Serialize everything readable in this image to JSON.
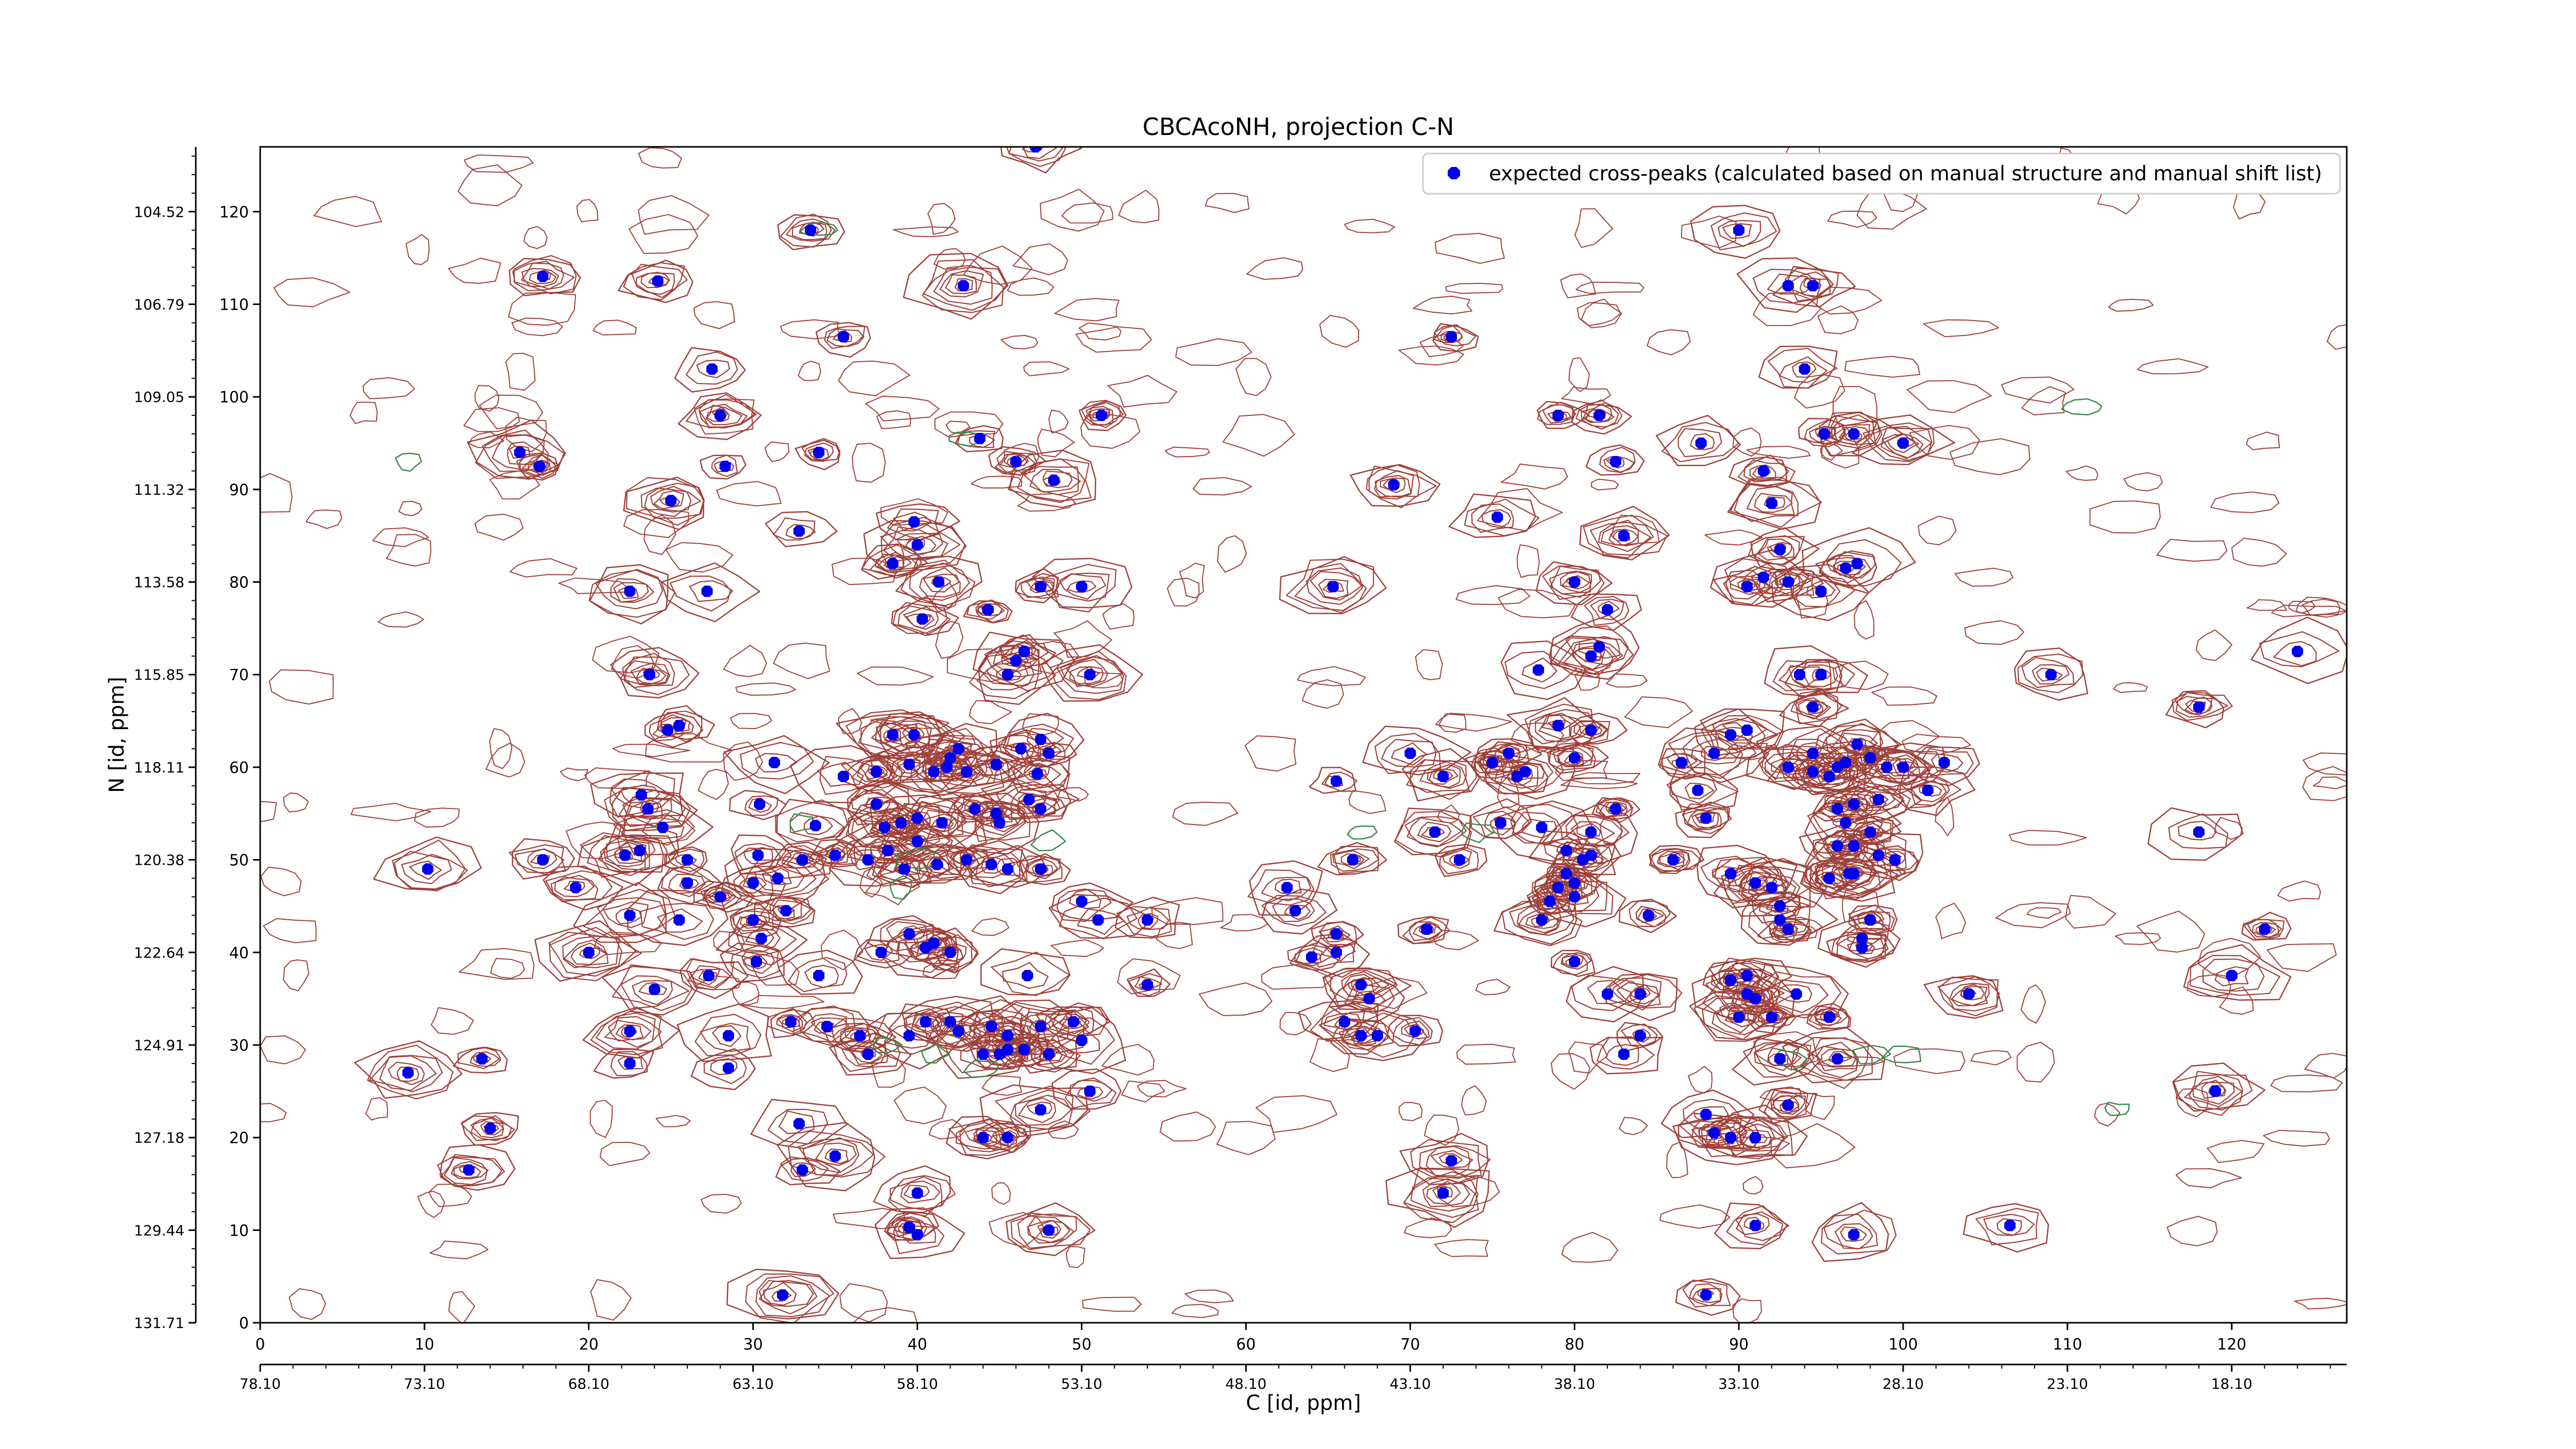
{
  "chart_data": {
    "type": "scatter",
    "title": "CBCAcoNH, projection C-N",
    "xlabel": "C [id, ppm]",
    "ylabel": "N [id, ppm]",
    "xlim": [
      0,
      127
    ],
    "ylim": [
      0,
      127
    ],
    "x_ticks": [
      0,
      10,
      20,
      30,
      40,
      50,
      60,
      70,
      80,
      90,
      100,
      110,
      120
    ],
    "y_ticks": [
      0,
      10,
      20,
      30,
      40,
      50,
      60,
      70,
      80,
      90,
      100,
      110,
      120
    ],
    "x_secondary_ticks": [
      "78.10",
      "73.10",
      "68.10",
      "63.10",
      "58.10",
      "53.10",
      "48.10",
      "43.10",
      "38.10",
      "33.10",
      "28.10",
      "23.10",
      "18.10"
    ],
    "y_secondary_ticks": [
      "131.71",
      "129.44",
      "127.18",
      "124.91",
      "122.64",
      "120.38",
      "118.11",
      "115.85",
      "113.58",
      "111.32",
      "109.05",
      "106.79",
      "104.52"
    ],
    "legend": {
      "position": "top-right",
      "entries": [
        "expected cross-peaks (calculated based on manual structure and manual shift list)"
      ]
    },
    "colors": {
      "positive_contour": "#a0403a",
      "negative_contour": "#3a8a4e",
      "marker": "#0000ee"
    },
    "grid": false,
    "series": [
      {
        "name": "expected cross-peaks (calculated based on manual structure and manual shift list)",
        "points": [
          [
            33.5,
            118
          ],
          [
            17.2,
            113
          ],
          [
            24.2,
            112.5
          ],
          [
            42.8,
            112
          ],
          [
            35.5,
            106.5
          ],
          [
            72.5,
            106.5
          ],
          [
            27.5,
            103
          ],
          [
            28,
            98
          ],
          [
            51.2,
            98
          ],
          [
            47.2,
            127
          ],
          [
            15.8,
            94
          ],
          [
            17,
            92.5
          ],
          [
            28.3,
            92.5
          ],
          [
            34,
            94
          ],
          [
            43.8,
            95.5
          ],
          [
            46,
            93
          ],
          [
            48.3,
            91
          ],
          [
            25,
            88.8
          ],
          [
            32.8,
            85.5
          ],
          [
            39.8,
            86.5
          ],
          [
            40,
            84
          ],
          [
            38.5,
            82
          ],
          [
            41.3,
            80
          ],
          [
            22.5,
            79
          ],
          [
            27.2,
            79
          ],
          [
            47.5,
            79.5
          ],
          [
            50,
            79.5
          ],
          [
            40.3,
            76
          ],
          [
            44.3,
            77
          ],
          [
            45.5,
            70
          ],
          [
            46,
            71.5
          ],
          [
            46.5,
            72.5
          ],
          [
            50.5,
            70
          ],
          [
            23.7,
            70
          ],
          [
            24.8,
            64
          ],
          [
            25.5,
            64.5
          ],
          [
            31.3,
            60.5
          ],
          [
            35.5,
            59
          ],
          [
            38.5,
            63.5
          ],
          [
            39.8,
            63.5
          ],
          [
            39.5,
            60.3
          ],
          [
            37.5,
            59.5
          ],
          [
            41,
            59.5
          ],
          [
            42,
            61
          ],
          [
            42.5,
            62
          ],
          [
            41.8,
            60
          ],
          [
            43,
            59.5
          ],
          [
            44.8,
            60.3
          ],
          [
            46.3,
            62
          ],
          [
            47.5,
            63
          ],
          [
            47.3,
            59.3
          ],
          [
            48,
            61.5
          ],
          [
            23.2,
            57
          ],
          [
            23.6,
            55.5
          ],
          [
            24.5,
            53.5
          ],
          [
            23.1,
            51
          ],
          [
            30.4,
            56
          ],
          [
            33.8,
            53.7
          ],
          [
            35,
            50.5
          ],
          [
            37.5,
            56
          ],
          [
            38,
            53.5
          ],
          [
            39,
            54
          ],
          [
            40,
            54.5
          ],
          [
            41.5,
            54
          ],
          [
            43.5,
            55.5
          ],
          [
            44.8,
            55
          ],
          [
            45,
            54
          ],
          [
            46.8,
            56.5
          ],
          [
            47.5,
            55.5
          ],
          [
            10.2,
            49
          ],
          [
            17.2,
            50
          ],
          [
            19.2,
            47
          ],
          [
            22.2,
            50.5
          ],
          [
            26,
            50
          ],
          [
            26,
            47.5
          ],
          [
            28,
            46
          ],
          [
            30,
            47.5
          ],
          [
            30.3,
            50.5
          ],
          [
            31.5,
            48
          ],
          [
            33,
            50
          ],
          [
            37,
            50
          ],
          [
            38.2,
            51
          ],
          [
            39.2,
            49
          ],
          [
            40,
            52
          ],
          [
            41.2,
            49.5
          ],
          [
            43,
            50
          ],
          [
            44.5,
            49.5
          ],
          [
            45.5,
            49
          ],
          [
            47.5,
            49
          ],
          [
            22.5,
            44
          ],
          [
            25.5,
            43.5
          ],
          [
            30,
            43.5
          ],
          [
            30.5,
            41.5
          ],
          [
            32,
            44.5
          ],
          [
            20,
            40
          ],
          [
            24,
            36
          ],
          [
            27.3,
            37.5
          ],
          [
            30.2,
            39
          ],
          [
            34,
            37.5
          ],
          [
            37.8,
            40
          ],
          [
            39.5,
            42
          ],
          [
            40.5,
            40.5
          ],
          [
            41,
            41
          ],
          [
            42,
            40
          ],
          [
            46.7,
            37.5
          ],
          [
            50,
            45.5
          ],
          [
            51,
            43.5
          ],
          [
            54,
            43.5
          ],
          [
            54,
            36.5
          ],
          [
            22.5,
            31.5
          ],
          [
            28.5,
            31
          ],
          [
            32.3,
            32.5
          ],
          [
            34.5,
            32
          ],
          [
            36.5,
            31
          ],
          [
            37,
            29
          ],
          [
            39.5,
            31
          ],
          [
            40.5,
            32.5
          ],
          [
            42,
            32.5
          ],
          [
            42.5,
            31.5
          ],
          [
            44.5,
            32
          ],
          [
            45,
            29
          ],
          [
            45.5,
            31
          ],
          [
            46.5,
            29.5
          ],
          [
            47.5,
            32
          ],
          [
            49.5,
            32.5
          ],
          [
            50,
            30.5
          ],
          [
            13.5,
            28.5
          ],
          [
            22.5,
            28
          ],
          [
            28.5,
            27.5
          ],
          [
            9,
            27
          ],
          [
            44,
            29
          ],
          [
            45.5,
            29.5
          ],
          [
            48,
            29
          ],
          [
            50.5,
            25
          ],
          [
            47.5,
            23
          ],
          [
            14,
            21
          ],
          [
            32.8,
            21.5
          ],
          [
            35,
            18
          ],
          [
            12.7,
            16.5
          ],
          [
            33,
            16.5
          ],
          [
            44,
            20
          ],
          [
            45.5,
            20
          ],
          [
            40,
            14
          ],
          [
            39.5,
            10.3
          ],
          [
            40,
            9.5
          ],
          [
            48,
            10
          ],
          [
            31.8,
            3
          ],
          [
            62.5,
            47
          ],
          [
            63,
            44.5
          ],
          [
            64,
            39.5
          ],
          [
            65.5,
            40
          ],
          [
            65.5,
            42
          ],
          [
            65.5,
            58.5
          ],
          [
            66,
            32.5
          ],
          [
            67,
            36.5
          ],
          [
            67.5,
            35
          ],
          [
            67,
            31
          ],
          [
            68,
            31
          ],
          [
            66.5,
            50
          ],
          [
            65.3,
            79.5
          ],
          [
            71,
            42.5
          ],
          [
            70.3,
            31.5
          ],
          [
            69,
            90.5
          ],
          [
            72.5,
            17.5
          ],
          [
            72,
            14
          ],
          [
            75.3,
            87
          ],
          [
            79,
            98
          ],
          [
            81.5,
            98
          ],
          [
            82.5,
            93
          ],
          [
            82,
            77
          ],
          [
            81,
            72
          ],
          [
            80,
            80
          ],
          [
            83,
            85
          ],
          [
            81.5,
            73
          ],
          [
            77.8,
            70.5
          ],
          [
            70,
            61.5
          ],
          [
            71.5,
            53
          ],
          [
            73,
            50
          ],
          [
            72,
            59
          ],
          [
            75,
            60.5
          ],
          [
            76,
            61.5
          ],
          [
            76.5,
            59
          ],
          [
            77,
            59.5
          ],
          [
            79,
            64.5
          ],
          [
            81,
            64
          ],
          [
            80,
            61
          ],
          [
            78,
            53.5
          ],
          [
            75.5,
            54
          ],
          [
            79.5,
            51
          ],
          [
            79,
            47
          ],
          [
            78.5,
            45.5
          ],
          [
            80,
            46
          ],
          [
            80,
            47.5
          ],
          [
            79.5,
            48.5
          ],
          [
            81,
            50.5
          ],
          [
            78,
            43.5
          ],
          [
            80,
            39
          ],
          [
            82,
            35.5
          ],
          [
            84,
            35.5
          ],
          [
            84,
            31
          ],
          [
            83,
            29
          ],
          [
            82.5,
            55.5
          ],
          [
            81,
            53
          ],
          [
            80.5,
            50
          ],
          [
            84.5,
            44
          ],
          [
            86.5,
            60.5
          ],
          [
            87.5,
            57.5
          ],
          [
            86,
            50
          ],
          [
            88,
            22.5
          ],
          [
            88,
            3
          ],
          [
            88,
            54.5
          ],
          [
            88.5,
            61.5
          ],
          [
            89.5,
            63.5
          ],
          [
            90.5,
            64
          ],
          [
            89.5,
            48.5
          ],
          [
            91,
            47.5
          ],
          [
            92,
            47
          ],
          [
            92.5,
            45
          ],
          [
            92.5,
            43.5
          ],
          [
            93,
            42.5
          ],
          [
            89.5,
            37
          ],
          [
            90.5,
            37.5
          ],
          [
            90.5,
            35.5
          ],
          [
            91,
            35
          ],
          [
            90,
            33
          ],
          [
            92,
            33
          ],
          [
            93.5,
            35.5
          ],
          [
            92.5,
            28.5
          ],
          [
            95.5,
            33
          ],
          [
            93,
            23.5
          ],
          [
            88.5,
            20.5
          ],
          [
            89.5,
            20
          ],
          [
            91,
            20
          ],
          [
            91,
            10.5
          ],
          [
            90,
            118
          ],
          [
            91.5,
            92
          ],
          [
            92,
            88.5
          ],
          [
            92.5,
            83.5
          ],
          [
            91.5,
            80.5
          ],
          [
            90.5,
            79.5
          ],
          [
            93,
            80
          ],
          [
            95,
            79
          ],
          [
            93.7,
            70
          ],
          [
            95,
            70
          ],
          [
            94.5,
            66.5
          ],
          [
            93,
            112
          ],
          [
            94.5,
            112
          ],
          [
            94,
            103
          ],
          [
            87.7,
            95
          ],
          [
            95.2,
            96
          ],
          [
            97,
            96
          ],
          [
            97.2,
            82
          ],
          [
            96.5,
            81.5
          ],
          [
            93,
            60
          ],
          [
            94.5,
            61.5
          ],
          [
            94.5,
            59.5
          ],
          [
            95.5,
            59
          ],
          [
            96,
            60
          ],
          [
            96.5,
            60.5
          ],
          [
            97.2,
            62.5
          ],
          [
            98,
            61
          ],
          [
            99,
            60
          ],
          [
            100,
            60
          ],
          [
            98.5,
            56.5
          ],
          [
            96,
            55.5
          ],
          [
            97,
            56
          ],
          [
            96.5,
            54
          ],
          [
            98,
            53
          ],
          [
            97,
            51.5
          ],
          [
            96,
            51.5
          ],
          [
            98.5,
            50.5
          ],
          [
            97,
            48.5
          ],
          [
            95.5,
            48
          ],
          [
            96.7,
            48.5
          ],
          [
            99.5,
            50
          ],
          [
            98,
            43.5
          ],
          [
            97.5,
            41.5
          ],
          [
            97.5,
            40.5
          ],
          [
            96,
            28.5
          ],
          [
            97,
            9.5
          ],
          [
            100,
            95
          ],
          [
            101.5,
            57.5
          ],
          [
            102.5,
            60.5
          ],
          [
            104,
            35.5
          ],
          [
            106.5,
            10.5
          ],
          [
            109,
            70
          ],
          [
            118,
            66.5
          ],
          [
            118,
            53
          ],
          [
            119,
            25
          ],
          [
            120,
            37.5
          ],
          [
            122,
            42.5
          ],
          [
            124,
            72.5
          ]
        ]
      }
    ]
  }
}
